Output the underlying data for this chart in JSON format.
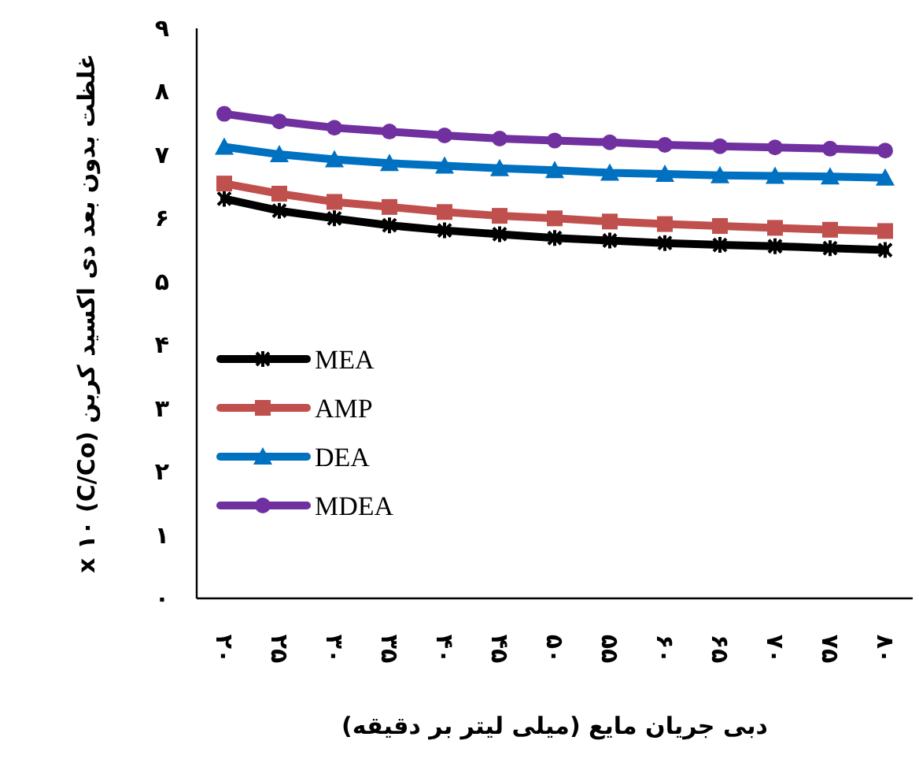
{
  "chart_data": {
    "type": "line",
    "xlabel": "دبی جریان مایع (میلی لیتر بر دقیقه)",
    "ylabel": "غلظت بدون بعد دی اکسید کربن x ۱۰ (C/Co)",
    "categories": [
      "۲۰",
      "۲۵",
      "۳۰",
      "۳۵",
      "۴۰",
      "۴۵",
      "۵۰",
      "۵۵",
      "۶۰",
      "۶۵",
      "۷۰",
      "۷۵",
      "۸۰"
    ],
    "ylim": [
      0,
      9
    ],
    "yticks": [
      {
        "value": 0,
        "label": "۰"
      },
      {
        "value": 1,
        "label": "۱"
      },
      {
        "value": 2,
        "label": "۲"
      },
      {
        "value": 3,
        "label": "۳"
      },
      {
        "value": 4,
        "label": "۴"
      },
      {
        "value": 5,
        "label": "۵"
      },
      {
        "value": 6,
        "label": "۶"
      },
      {
        "value": 7,
        "label": "۷"
      },
      {
        "value": 8,
        "label": "۸"
      },
      {
        "value": 9,
        "label": "۹"
      }
    ],
    "legend": "left",
    "series": [
      {
        "name": "MEA",
        "color": "#000000",
        "marker": "cross",
        "values": [
          6.31,
          6.12,
          6.0,
          5.89,
          5.81,
          5.75,
          5.69,
          5.65,
          5.61,
          5.58,
          5.56,
          5.53,
          5.5
        ]
      },
      {
        "name": "AMP",
        "color": "#c0504d",
        "marker": "square",
        "values": [
          6.55,
          6.39,
          6.26,
          6.18,
          6.1,
          6.04,
          6.0,
          5.95,
          5.91,
          5.88,
          5.85,
          5.82,
          5.8
        ]
      },
      {
        "name": "DEA",
        "color": "#0070c0",
        "marker": "triangle",
        "values": [
          7.13,
          7.01,
          6.93,
          6.87,
          6.83,
          6.79,
          6.76,
          6.72,
          6.7,
          6.68,
          6.67,
          6.66,
          6.64
        ]
      },
      {
        "name": "MDEA",
        "color": "#7030a0",
        "marker": "circle",
        "values": [
          7.65,
          7.53,
          7.43,
          7.37,
          7.31,
          7.26,
          7.23,
          7.2,
          7.16,
          7.14,
          7.12,
          7.1,
          7.07
        ]
      }
    ]
  }
}
